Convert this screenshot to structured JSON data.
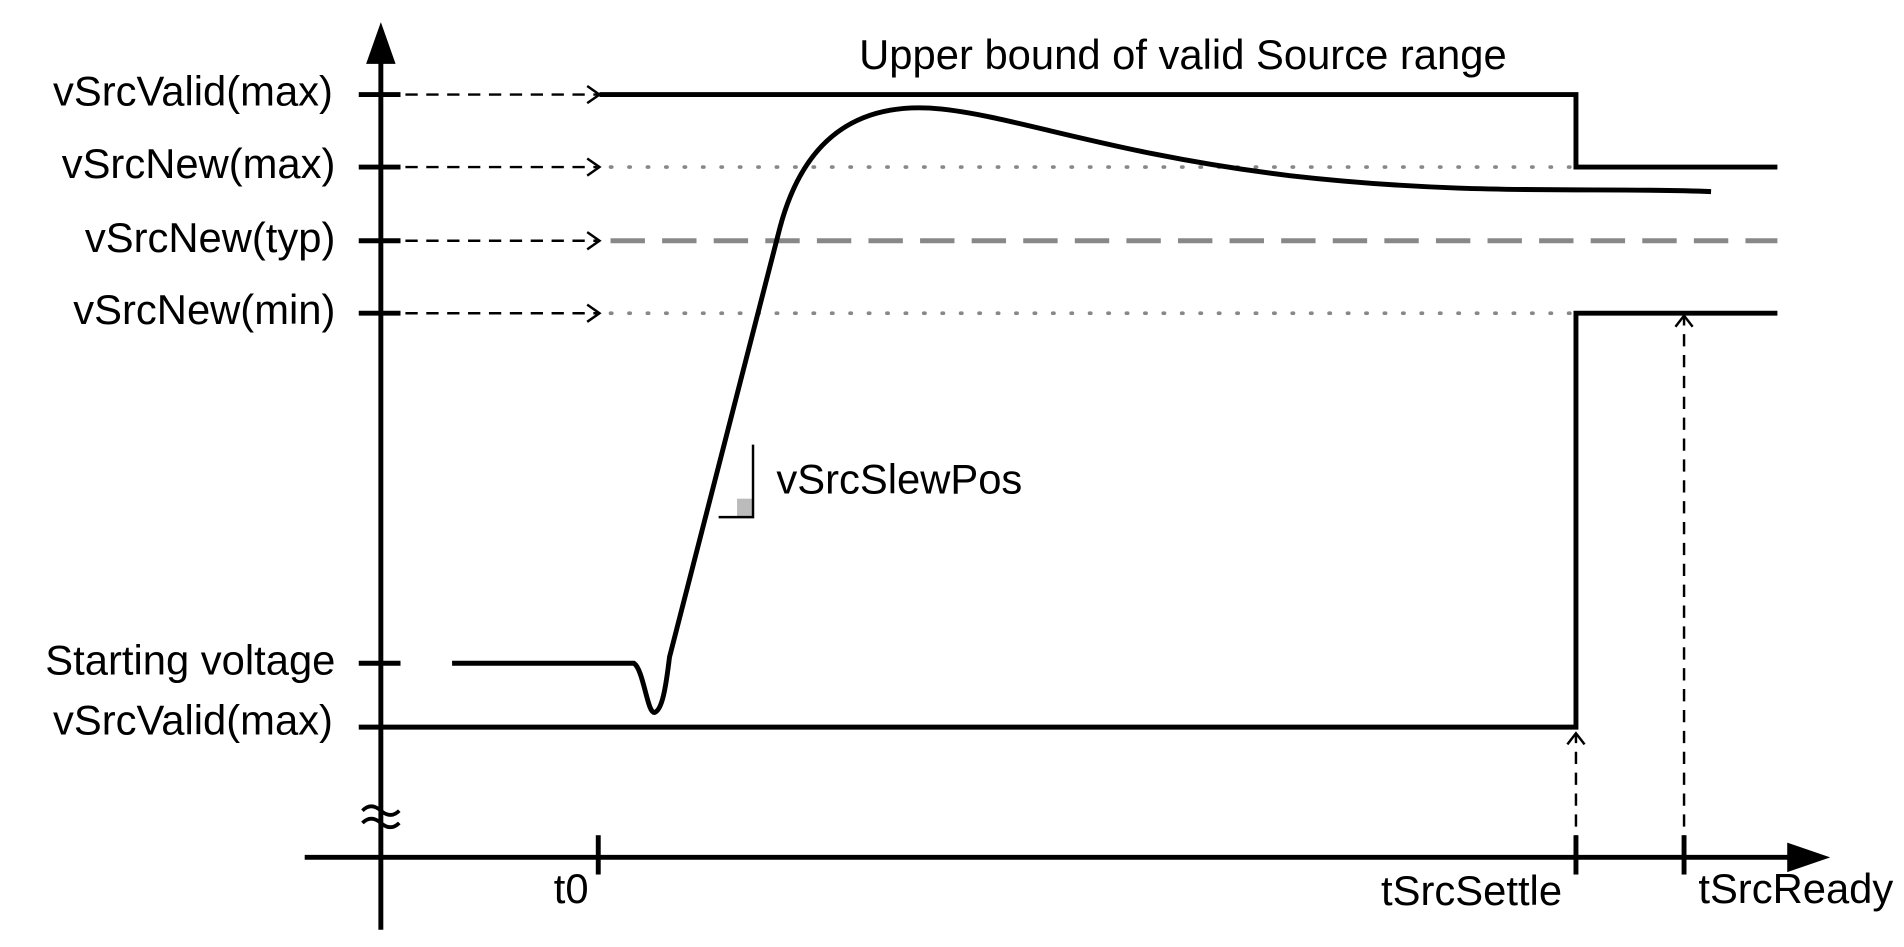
{
  "title": "Upper bound of valid Source range",
  "y_labels": [
    "vSrcValid(max)",
    "vSrcNew(max)",
    "vSrcNew(typ)",
    "vSrcNew(min)",
    "Starting voltage",
    "vSrcValid(max)"
  ],
  "slope_label": "vSrcSlewPos",
  "x_labels": [
    "t0",
    "tSrcSettle",
    "tSrcReady"
  ]
}
